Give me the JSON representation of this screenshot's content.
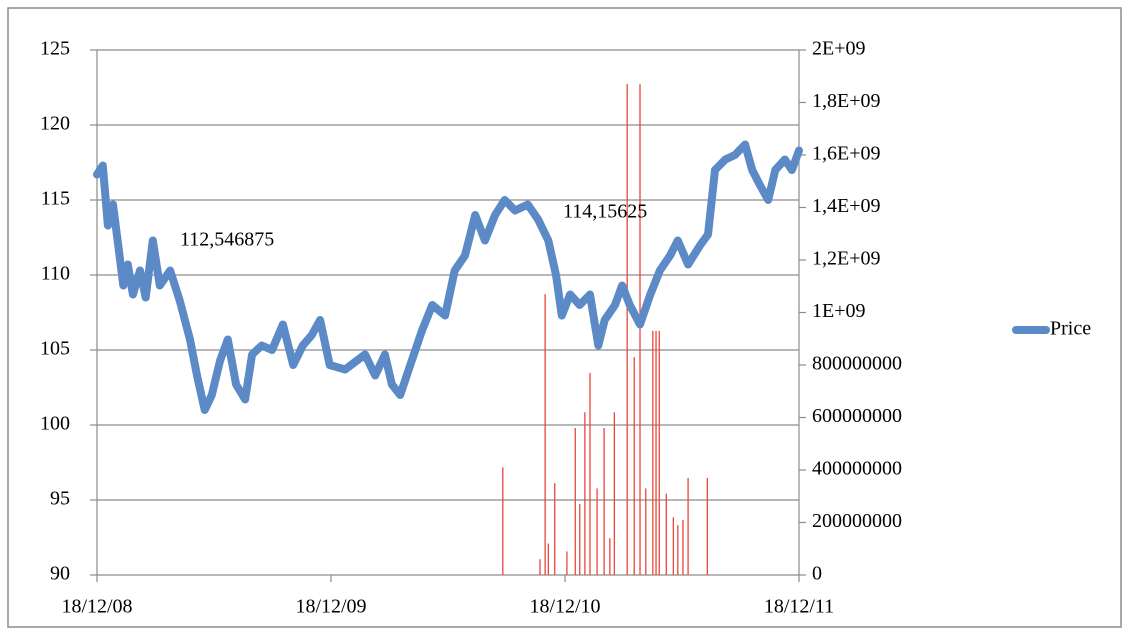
{
  "chart_data": {
    "type": "line",
    "xlim": [
      "2008-12-18",
      "2011-12-18"
    ],
    "xticks": [
      {
        "value": "2008-12-18",
        "label": "18/12/08"
      },
      {
        "value": "2009-12-18",
        "label": "18/12/09"
      },
      {
        "value": "2010-12-18",
        "label": "18/12/10"
      },
      {
        "value": "2011-12-18",
        "label": "18/12/11"
      }
    ],
    "ylim": [
      90,
      125
    ],
    "yticks": [
      90,
      95,
      100,
      105,
      110,
      115,
      120,
      125
    ],
    "y2lim": [
      0,
      2000000000
    ],
    "y2ticks": [
      0,
      200000000,
      400000000,
      600000000,
      800000000,
      {
        "value": 1000000000,
        "label": "1E+09"
      },
      {
        "value": 1200000000,
        "label": "1,2E+09"
      },
      {
        "value": 1400000000,
        "label": "1,4E+09"
      },
      {
        "value": 1600000000,
        "label": "1,6E+09"
      },
      {
        "value": 1800000000,
        "label": "1,8E+09"
      },
      {
        "value": 2000000000,
        "label": "2E+09"
      }
    ],
    "grid": true,
    "legend": "right",
    "annotations": [
      "112,546875",
      "114,15625"
    ],
    "series": [
      {
        "name": "Price",
        "type": "line",
        "color": "#5b8ac7",
        "x": [
          "2008-12-18",
          "2008-12-27",
          "2009-01-04",
          "2009-01-12",
          "2009-01-20",
          "2009-01-28",
          "2009-02-04",
          "2009-02-12",
          "2009-02-23",
          "2009-03-04",
          "2009-03-15",
          "2009-03-26",
          "2009-04-11",
          "2009-04-26",
          "2009-05-12",
          "2009-05-23",
          "2009-06-04",
          "2009-06-15",
          "2009-06-28",
          "2009-07-10",
          "2009-07-23",
          "2009-08-06",
          "2009-08-17",
          "2009-09-01",
          "2009-09-17",
          "2009-10-04",
          "2009-10-20",
          "2009-11-04",
          "2009-11-18",
          "2009-12-01",
          "2009-12-16",
          "2010-01-09",
          "2010-02-09",
          "2010-02-25",
          "2010-03-12",
          "2010-03-23",
          "2010-04-05",
          "2010-04-23",
          "2010-05-09",
          "2010-05-25",
          "2010-06-14",
          "2010-06-29",
          "2010-07-15",
          "2010-07-31",
          "2010-08-15",
          "2010-08-31",
          "2010-09-15",
          "2010-10-01",
          "2010-10-21",
          "2010-11-06",
          "2010-11-22",
          "2010-12-04",
          "2010-12-13",
          "2010-12-26",
          "2011-01-10",
          "2011-01-26",
          "2011-02-08",
          "2011-02-18",
          "2011-03-06",
          "2011-03-17",
          "2011-03-29",
          "2011-04-14",
          "2011-04-30",
          "2011-05-15",
          "2011-05-31",
          "2011-06-12",
          "2011-06-28",
          "2011-07-17",
          "2011-07-29",
          "2011-08-09",
          "2011-08-25",
          "2011-09-09",
          "2011-09-25",
          "2011-10-06",
          "2011-10-18",
          "2011-10-31",
          "2011-11-11",
          "2011-11-26",
          "2011-12-07",
          "2011-12-18"
        ],
        "values": [
          116.7,
          117.3,
          113.3,
          114.7,
          112,
          109.3,
          110.7,
          108.7,
          110.3,
          108.5,
          112.3,
          109.3,
          110.3,
          108.3,
          105.7,
          103.3,
          101,
          102,
          104.3,
          105.7,
          102.7,
          101.7,
          104.7,
          105.3,
          105,
          106.7,
          104,
          105.3,
          106,
          107,
          104,
          103.7,
          104.7,
          103.3,
          104.7,
          102.7,
          102,
          104.3,
          106.3,
          108,
          107.3,
          110.3,
          111.3,
          114,
          112.3,
          114,
          115,
          114.3,
          114.7,
          113.7,
          112.3,
          110,
          107.3,
          108.7,
          108,
          108.7,
          105.3,
          107,
          108,
          109.3,
          108,
          106.7,
          108.7,
          110.3,
          111.3,
          112.3,
          110.7,
          112,
          112.7,
          117,
          117.7,
          118,
          118.7,
          117,
          116,
          115,
          117,
          117.7,
          117,
          118.3
        ]
      },
      {
        "type": "bar",
        "axis": "y2",
        "color": "#e8473a",
        "x": [
          "2010-09-12",
          "2010-11-09",
          "2010-11-17",
          "2010-11-22",
          "2010-12-02",
          "2010-12-21",
          "2011-01-03",
          "2011-01-10",
          "2011-01-18",
          "2011-01-26",
          "2011-02-06",
          "2011-02-17",
          "2011-02-26",
          "2011-03-05",
          "2011-03-25",
          "2011-04-05",
          "2011-04-14",
          "2011-04-23",
          "2011-05-04",
          "2011-05-09",
          "2011-05-14",
          "2011-05-25",
          "2011-06-05",
          "2011-06-12",
          "2011-06-20",
          "2011-06-28",
          "2011-07-28"
        ],
        "values": [
          410000000,
          60000000,
          1070000000,
          120000000,
          350000000,
          90000000,
          560000000,
          270000000,
          620000000,
          770000000,
          330000000,
          560000000,
          140000000,
          620000000,
          1870000000,
          830000000,
          1870000000,
          330000000,
          930000000,
          930000000,
          930000000,
          310000000,
          220000000,
          190000000,
          210000000,
          370000000,
          370000000
        ]
      }
    ]
  }
}
